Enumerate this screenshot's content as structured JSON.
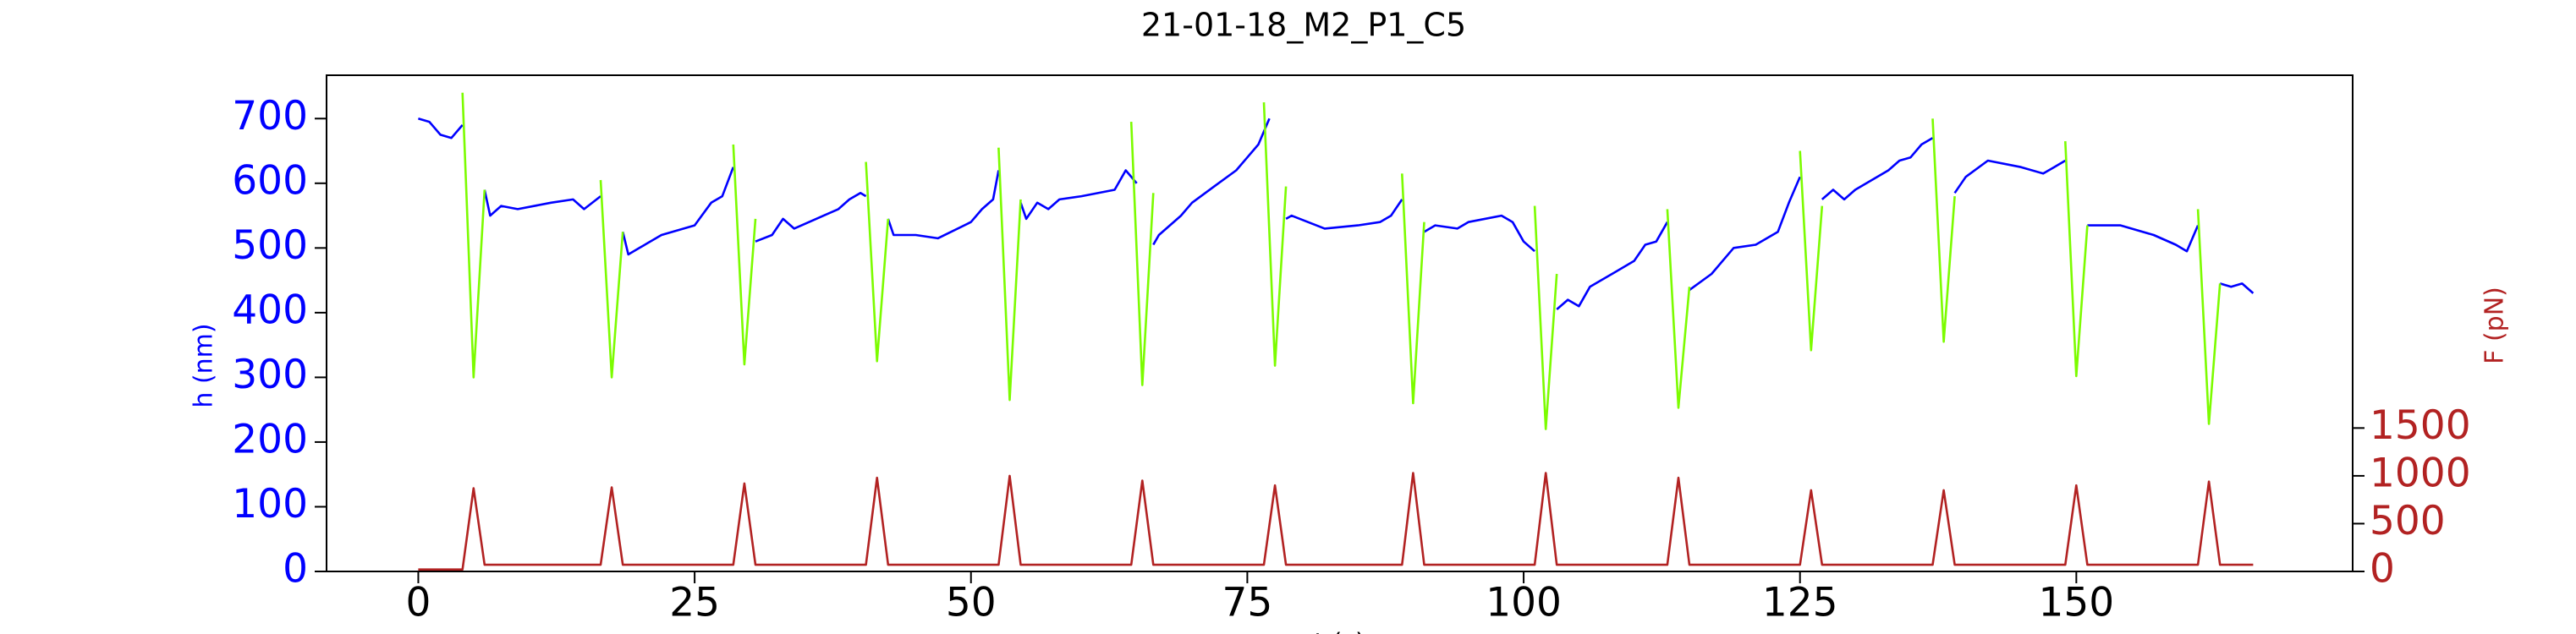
{
  "chart_data": {
    "type": "line",
    "title": "21-01-18_M2_P1_C5",
    "xlabel": "t (s)",
    "ylabel": "h (nm)",
    "y2label": "F (pN)",
    "xlim": [
      -8.3,
      175
    ],
    "ylim": [
      0,
      767
    ],
    "y2lim": [
      0,
      5190
    ],
    "xticks": [
      0,
      25,
      50,
      75,
      100,
      125,
      150
    ],
    "yticks": [
      0,
      100,
      200,
      300,
      400,
      500,
      600,
      700
    ],
    "y2ticks": [
      0,
      500,
      1000,
      1500
    ],
    "ycolor": "#0000ff",
    "y2color": "#b22222",
    "series": [
      {
        "color": "#0000ff",
        "x": [
          0,
          1,
          2,
          3,
          4,
          null,
          6,
          6.5,
          7.5,
          9,
          12,
          14,
          15,
          16.5,
          null,
          18.5,
          19,
          20,
          22,
          25,
          26.5,
          27.5,
          28.5,
          null,
          30.5,
          32,
          33,
          34,
          36,
          38,
          39,
          40,
          40.5,
          null,
          42.5,
          43,
          45,
          47,
          50,
          51,
          52,
          52.5,
          null,
          54.5,
          55,
          56,
          57,
          58,
          60,
          63,
          64,
          65,
          null,
          66.5,
          67,
          69,
          70,
          72,
          74,
          75,
          76,
          77,
          null,
          78.5,
          79,
          82,
          85,
          87,
          88,
          89,
          null,
          91,
          92,
          94,
          95,
          98,
          99,
          100,
          101,
          null,
          103,
          104,
          105,
          106,
          108,
          110,
          111,
          112,
          113,
          null,
          115,
          117,
          119,
          121,
          123,
          124,
          125,
          null,
          127,
          128,
          129,
          130,
          133,
          134,
          135,
          136,
          137,
          null,
          139,
          140,
          142,
          145,
          147,
          148,
          149,
          null,
          151,
          152,
          154,
          157,
          159,
          160,
          161,
          null,
          163,
          164,
          165,
          166
        ],
        "values": [
          700,
          695,
          675,
          670,
          690,
          null,
          590,
          550,
          565,
          560,
          570,
          575,
          560,
          580,
          null,
          525,
          490,
          500,
          520,
          535,
          570,
          580,
          625,
          null,
          510,
          520,
          545,
          530,
          545,
          560,
          575,
          585,
          580,
          null,
          545,
          520,
          520,
          515,
          540,
          560,
          575,
          620,
          null,
          570,
          545,
          570,
          560,
          575,
          580,
          590,
          620,
          600,
          null,
          505,
          520,
          550,
          570,
          595,
          620,
          640,
          660,
          700,
          null,
          545,
          550,
          530,
          535,
          540,
          550,
          575,
          null,
          525,
          535,
          530,
          540,
          550,
          540,
          510,
          495,
          null,
          405,
          420,
          410,
          440,
          460,
          480,
          505,
          510,
          540,
          null,
          435,
          460,
          500,
          505,
          525,
          570,
          610,
          null,
          575,
          590,
          575,
          590,
          620,
          635,
          640,
          660,
          670,
          null,
          585,
          610,
          635,
          625,
          615,
          625,
          635,
          null,
          535,
          535,
          535,
          520,
          505,
          495,
          535,
          null,
          445,
          440,
          445,
          430
        ]
      },
      {
        "color": "#7cfc00",
        "x": [
          4,
          5,
          6,
          null,
          16.5,
          17.5,
          18.5,
          null,
          28.5,
          29.5,
          30.5,
          null,
          40.5,
          41.5,
          42.5,
          null,
          52.5,
          53.5,
          54.5,
          null,
          64.5,
          65.5,
          66.5,
          null,
          76.5,
          77.5,
          78.5,
          null,
          89,
          90,
          91,
          null,
          101,
          102,
          103,
          null,
          113,
          114,
          115,
          null,
          125,
          126,
          127,
          null,
          137,
          138,
          139,
          null,
          149,
          150,
          151,
          null,
          161,
          162,
          163
        ],
        "values": [
          740,
          300,
          590,
          null,
          605,
          300,
          525,
          null,
          660,
          320,
          545,
          null,
          633,
          325,
          545,
          null,
          655,
          265,
          575,
          null,
          695,
          288,
          585,
          null,
          725,
          318,
          595,
          null,
          615,
          260,
          540,
          null,
          565,
          220,
          460,
          null,
          560,
          253,
          440,
          null,
          650,
          342,
          565,
          null,
          700,
          355,
          580,
          null,
          665,
          302,
          535,
          null,
          560,
          228,
          445
        ]
      },
      {
        "color": "#b22222",
        "axis": "y2",
        "x": [
          0,
          4,
          5,
          6,
          16.5,
          17.5,
          18.5,
          28.5,
          29.5,
          30.5,
          40.5,
          41.5,
          42.5,
          52.5,
          53.5,
          54.5,
          64.5,
          65.5,
          66.5,
          76.5,
          77.5,
          78.5,
          89,
          90,
          91,
          101,
          102,
          103,
          113,
          114,
          115,
          125,
          126,
          127,
          137,
          138,
          139,
          149,
          150,
          151,
          161,
          162,
          163,
          166
        ],
        "values": [
          20,
          20,
          870,
          70,
          70,
          880,
          70,
          70,
          920,
          70,
          70,
          980,
          70,
          70,
          1000,
          70,
          70,
          950,
          70,
          70,
          900,
          70,
          70,
          1030,
          70,
          70,
          1030,
          70,
          70,
          980,
          70,
          70,
          850,
          70,
          70,
          850,
          70,
          70,
          900,
          70,
          70,
          940,
          70,
          70
        ]
      }
    ]
  }
}
